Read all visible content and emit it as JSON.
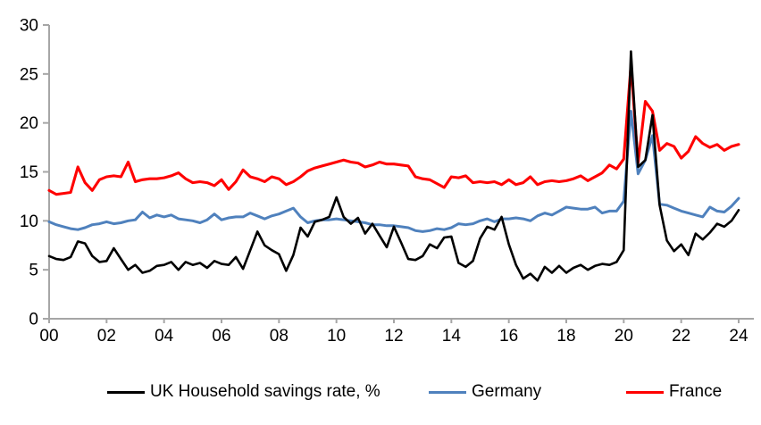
{
  "chart_data": {
    "type": "line",
    "title": "",
    "x_start": "2000Q1",
    "x_end": "2024Q1",
    "frequency": "quarterly",
    "x_tick_labels": [
      "00",
      "02",
      "04",
      "06",
      "08",
      "10",
      "12",
      "14",
      "16",
      "18",
      "20",
      "22",
      "24"
    ],
    "y_ticks": [
      0,
      5,
      10,
      15,
      20,
      25,
      30
    ],
    "ylim": [
      0,
      30
    ],
    "grid": false,
    "legend_position": "bottom",
    "axis_color": "#a6a6a6",
    "background_color": "#ffffff",
    "series": [
      {
        "name": "UK Household savings rate, %",
        "color": "#000000",
        "stroke_width": 2.6,
        "values": [
          6.4,
          6.1,
          6.0,
          6.3,
          7.9,
          7.7,
          6.4,
          5.8,
          5.9,
          7.2,
          6.1,
          5.0,
          5.5,
          4.7,
          4.9,
          5.4,
          5.5,
          5.8,
          5.0,
          5.8,
          5.5,
          5.7,
          5.2,
          5.9,
          5.6,
          5.5,
          6.3,
          5.1,
          7.0,
          8.9,
          7.5,
          7.0,
          6.6,
          4.9,
          6.5,
          9.3,
          8.4,
          9.9,
          10.1,
          10.4,
          12.4,
          10.4,
          9.7,
          10.3,
          8.7,
          9.7,
          8.5,
          7.3,
          9.4,
          7.8,
          6.1,
          6.0,
          6.4,
          7.6,
          7.2,
          8.3,
          8.4,
          5.7,
          5.3,
          5.9,
          8.2,
          9.4,
          9.1,
          10.4,
          7.6,
          5.5,
          4.1,
          4.6,
          3.9,
          5.3,
          4.7,
          5.4,
          4.7,
          5.2,
          5.5,
          5.0,
          5.4,
          5.6,
          5.5,
          5.8,
          7.0,
          27.3,
          15.5,
          16.2,
          20.8,
          11.6,
          8.0,
          6.9,
          7.6,
          6.5,
          8.7,
          8.1,
          8.8,
          9.7,
          9.4,
          10.0,
          11.1
        ]
      },
      {
        "name": "Germany",
        "color": "#4f81bd",
        "stroke_width": 3.0,
        "values": [
          9.9,
          9.6,
          9.4,
          9.2,
          9.1,
          9.3,
          9.6,
          9.7,
          9.9,
          9.7,
          9.8,
          10.0,
          10.1,
          10.9,
          10.3,
          10.6,
          10.4,
          10.6,
          10.2,
          10.1,
          10.0,
          9.8,
          10.1,
          10.7,
          10.1,
          10.3,
          10.4,
          10.4,
          10.8,
          10.5,
          10.2,
          10.5,
          10.7,
          11.0,
          11.3,
          10.4,
          9.8,
          10.0,
          10.1,
          10.1,
          10.2,
          10.1,
          10.0,
          9.9,
          9.8,
          9.6,
          9.6,
          9.5,
          9.5,
          9.4,
          9.3,
          9.0,
          8.9,
          9.0,
          9.2,
          9.1,
          9.3,
          9.7,
          9.6,
          9.7,
          10.0,
          10.2,
          9.9,
          10.2,
          10.2,
          10.3,
          10.2,
          10.0,
          10.5,
          10.8,
          10.6,
          11.0,
          11.4,
          11.3,
          11.2,
          11.2,
          11.4,
          10.8,
          11.0,
          11.0,
          12.0,
          21.2,
          14.8,
          16.2,
          18.7,
          11.7,
          11.6,
          11.3,
          11.0,
          10.8,
          10.6,
          10.4,
          11.4,
          11.0,
          10.9,
          11.5,
          12.3
        ]
      },
      {
        "name": "France",
        "color": "#ff0000",
        "stroke_width": 3.1,
        "values": [
          13.1,
          12.7,
          12.8,
          12.9,
          15.5,
          13.9,
          13.1,
          14.2,
          14.5,
          14.6,
          14.5,
          16.0,
          14.0,
          14.2,
          14.3,
          14.3,
          14.4,
          14.6,
          14.9,
          14.3,
          13.9,
          14.0,
          13.9,
          13.6,
          14.2,
          13.2,
          14.0,
          15.2,
          14.5,
          14.3,
          14.0,
          14.5,
          14.3,
          13.7,
          14.0,
          14.5,
          15.1,
          15.4,
          15.6,
          15.8,
          16.0,
          16.2,
          16.0,
          15.9,
          15.5,
          15.7,
          16.0,
          15.8,
          15.8,
          15.7,
          15.6,
          14.5,
          14.3,
          14.2,
          13.8,
          13.4,
          14.5,
          14.4,
          14.6,
          13.9,
          14.0,
          13.9,
          14.0,
          13.7,
          14.2,
          13.7,
          13.9,
          14.5,
          13.7,
          14.0,
          14.1,
          14.0,
          14.1,
          14.3,
          14.6,
          14.1,
          14.5,
          14.9,
          15.7,
          15.3,
          16.3,
          25.9,
          15.9,
          22.2,
          21.2,
          17.2,
          17.9,
          17.6,
          16.4,
          17.1,
          18.6,
          17.9,
          17.5,
          17.8,
          17.2,
          17.6,
          17.8
        ]
      }
    ]
  },
  "legend": {
    "items": [
      {
        "label": "UK Household savings rate, %"
      },
      {
        "label": "Germany"
      },
      {
        "label": "France"
      }
    ]
  }
}
